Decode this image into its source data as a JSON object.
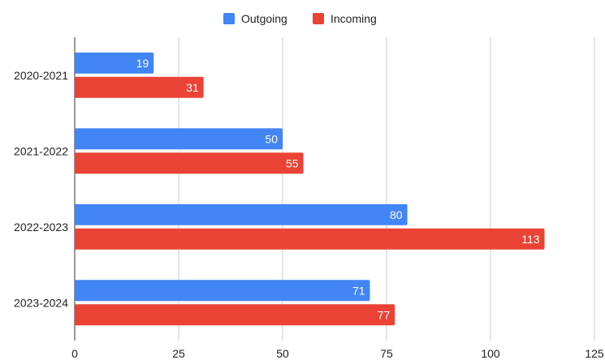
{
  "chart_data": {
    "type": "bar",
    "orientation": "horizontal",
    "categories": [
      "2020-2021",
      "2021-2022",
      "2022-2023",
      "2023-2024"
    ],
    "series": [
      {
        "name": "Outgoing",
        "values": [
          19,
          50,
          80,
          71
        ],
        "color": "#4285f4"
      },
      {
        "name": "Incoming",
        "values": [
          31,
          55,
          113,
          77
        ],
        "color": "#ea4335"
      }
    ],
    "xlim": [
      0,
      125
    ],
    "xticks": [
      0,
      25,
      50,
      75,
      100,
      125
    ],
    "legend_position": "top-center",
    "grid": true,
    "data_labels": true
  }
}
